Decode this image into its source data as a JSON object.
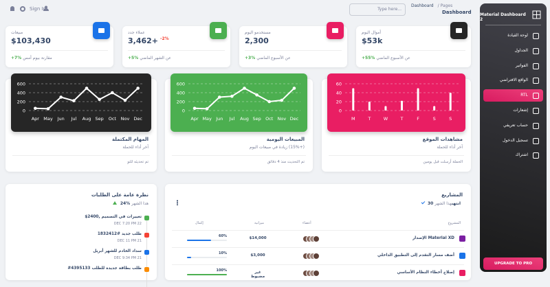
{
  "topbar": {
    "sign_in": "Sign In",
    "search_placeholder": "Type here...",
    "breadcrumb": {
      "parent": "Pages",
      "separator": "/",
      "current": "Dashboard"
    },
    "title": "Dashboard"
  },
  "sidebar": {
    "brand": "Material Dashboard 2",
    "items": [
      {
        "label": "لوحة القيادة"
      },
      {
        "label": "الجداول"
      },
      {
        "label": "الفواتير"
      },
      {
        "label": "الواقع الافتراضي"
      },
      {
        "label": "RTL",
        "active": true
      },
      {
        "label": "إشعارات"
      },
      {
        "label": "حساب تعريفي"
      },
      {
        "label": "تسجيل الدخول"
      },
      {
        "label": "اشتراك"
      }
    ],
    "upgrade": "UPGRADE TO PRO"
  },
  "stats": [
    {
      "label": "أموال اليوم",
      "value": "$53k",
      "change": "+55%",
      "note": "عن الأسبوع الماضي",
      "icon_color": "#262626"
    },
    {
      "label": "مستخدمو اليوم",
      "value": "2,300",
      "change": "+3%",
      "note": "عن الأسبوع الماضي",
      "icon_color": "#e91e63"
    },
    {
      "label": "عملاء جدد",
      "value": "3,462+",
      "badge": "-2%",
      "change": "+5%",
      "note": "عن الشهر الماضي",
      "icon_color": "#4caf50"
    },
    {
      "label": "مبيعات",
      "value": "$103,430",
      "change": "+7%",
      "note": "مقارنة بيوم أمس",
      "icon_color": "#1a73e8"
    }
  ],
  "charts": [
    {
      "title": "مشاهدات الموقع",
      "subtitle": "آخر أداء للحملة",
      "footer": "الحملة أرسلت قبل يومين",
      "chart": {
        "type": "bar",
        "color": "#e91e63",
        "categories": [
          "M",
          "T",
          "W",
          "T",
          "F",
          "S",
          "S"
        ],
        "values": [
          50,
          20,
          10,
          22,
          50,
          10,
          40
        ],
        "ylim": [
          0,
          60
        ],
        "yticks": [
          0,
          20,
          40,
          60
        ]
      }
    },
    {
      "title": "المبيعات اليومية",
      "subtitle": "(+15%) زيادة في مبيعات اليوم",
      "footer": "تم التحديث منذ 4 دقائق",
      "chart": {
        "type": "line",
        "color": "#4caf50",
        "categories": [
          "Apr",
          "May",
          "Jun",
          "Jul",
          "Aug",
          "Sep",
          "Oct",
          "Nov",
          "Dec"
        ],
        "values": [
          50,
          40,
          300,
          320,
          500,
          350,
          200,
          230,
          500
        ],
        "ylim": [
          0,
          600
        ],
        "yticks": [
          0,
          200,
          400,
          600
        ]
      }
    },
    {
      "title": "المهام المكتملة",
      "subtitle": "آخر أداء للحملة",
      "footer": "تم تحديثه للتو",
      "chart": {
        "type": "line",
        "color": "#262626",
        "categories": [
          "Apr",
          "May",
          "Jun",
          "Jul",
          "Aug",
          "Sep",
          "Oct",
          "Nov",
          "Dec"
        ],
        "values": [
          50,
          40,
          300,
          220,
          500,
          250,
          400,
          230,
          500
        ],
        "ylim": [
          0,
          600
        ],
        "yticks": [
          0,
          200,
          400,
          600
        ]
      }
    }
  ],
  "orders": {
    "title": "نظرة عامة على الطلبات",
    "change": "24%",
    "note": "هذا الشهر",
    "items": [
      {
        "title": "$2400, تغييرات في التصميم",
        "time": "DEC 7:20 PM 22",
        "color": "#4caf50"
      },
      {
        "title": "طلب جديد #1832412",
        "time": "DEC 11 PM 21",
        "color": "#f44335"
      },
      {
        "title": "سداد الخادم للشهر أبريل",
        "time": "DEC 9:34 PM 21",
        "color": "#1a73e8"
      },
      {
        "title": "#4395133 طلب بطاقة جديدة للطلب",
        "color": "#fb8c00"
      }
    ]
  },
  "projects": {
    "title": "المشاريع",
    "done": "30 انتهى",
    "note": "هذا الشهر",
    "columns": [
      "المشروع",
      "أعضاء",
      "ميزانية",
      "إكمال"
    ],
    "rows": [
      {
        "name": "Material XD الإصدار",
        "budget": "$14,000",
        "completion": {
          "value": 60,
          "label": "60%"
        },
        "icon_color": "#7b1fa2"
      },
      {
        "name": "أضف مسار التقدم إلى التطبيق الداخلي",
        "budget": "$3,000",
        "completion": {
          "value": 10,
          "label": "10%"
        },
        "icon_color": "#1a73e8"
      },
      {
        "name": "إصلاح أخطاء النظام الأساسي",
        "budget": "غير مضبوط",
        "completion": {
          "value": 100,
          "label": "100%"
        },
        "icon_color": "#e91e63"
      }
    ]
  }
}
